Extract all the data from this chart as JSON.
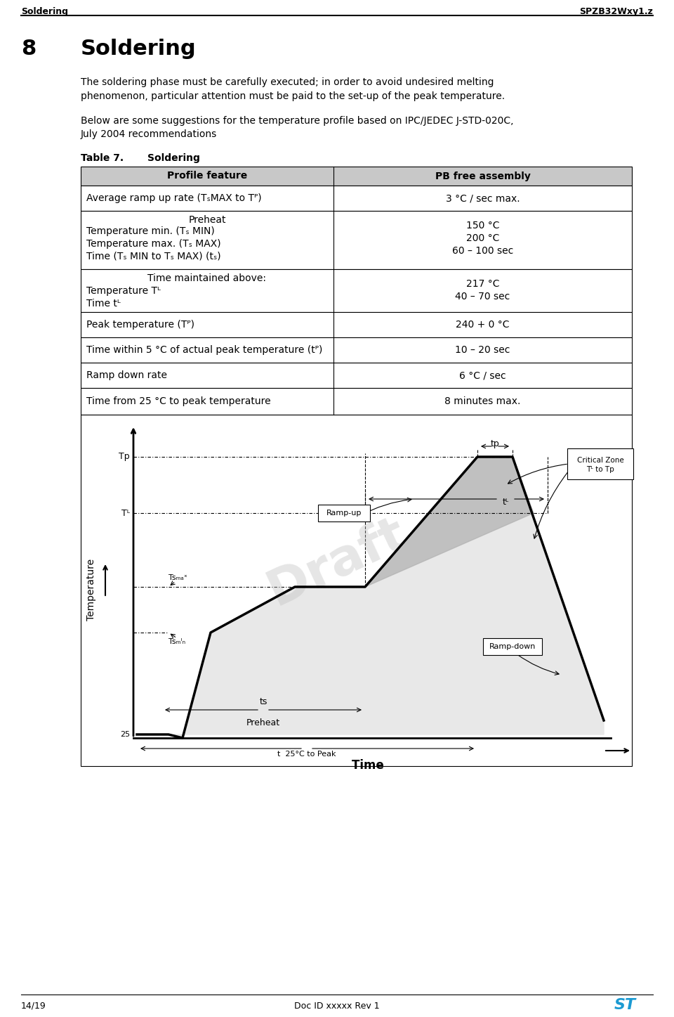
{
  "header_left": "Soldering",
  "header_right": "SPZB32Wxy1.z",
  "section_num": "8",
  "section_title": "Soldering",
  "para1": "The soldering phase must be carefully executed; in order to avoid undesired melting\nphenomenon, particular attention must be paid to the set-up of the peak temperature.",
  "para2": "Below are some suggestions for the temperature profile based on IPC/JEDEC J-STD-020C,\nJuly 2004 recommendations",
  "table_title": "Table 7.  Soldering",
  "col1_header": "Profile feature",
  "col2_header": "PB free assembly",
  "rows": [
    {
      "col1": "Average ramp up rate (Tₛᴹₕ to Tᴾ)",
      "col1_plain": "Average ramp up rate (TSMAX to TP)",
      "col2": "3 °C / sec max.",
      "merged": false,
      "shaded": false
    },
    {
      "col1": "Preheat\nTemperature min. (Tₛ ᴹᴵₙ)\nTemperature max. (Tₛ ᴹₐˣ)\nTime (Tₛ ᴹᴵₙ to Tₛ ᴹₐˣ) (tₛ)",
      "col1_plain": "Preheat\nTemperature min. (TS MIN)\nTemperature max. (TS MAX)\nTime (TS MIN to TS MAX) (tS)",
      "col2": "150 °C\n200 °C\n60 – 100 sec",
      "merged": false,
      "shaded": false
    },
    {
      "col1": "Time maintained above:\nTemperature Tᴸ\nTime tᴸ",
      "col1_plain": "Time maintained above:\nTemperature TL\nTime tL",
      "col2": "217 °C\n40 – 70 sec",
      "merged": false,
      "shaded": false
    },
    {
      "col1": "Peak temperature (Tᴾ)",
      "col1_plain": "Peak temperature (Tp)",
      "col2": "240 + 0 °C",
      "merged": false,
      "shaded": false
    },
    {
      "col1": "Time within 5 °C of actual peak temperature (tᴾ)",
      "col1_plain": "Time within 5 degC of actual peak temperature (tp)",
      "col2": "10 – 20 sec",
      "merged": false,
      "shaded": false
    },
    {
      "col1": "Ramp down rate",
      "col1_plain": "Ramp down rate",
      "col2": "6 °C / sec",
      "merged": false,
      "shaded": false
    },
    {
      "col1": "Time from 25 °C to peak temperature",
      "col1_plain": "Time from 25 degC to peak temperature",
      "col2": "8 minutes max.",
      "merged": false,
      "shaded": false
    }
  ],
  "footer_left": "14/19",
  "footer_center": "Doc ID xxxxx Rev 1",
  "draft_watermark": "Draft",
  "bg_color": "#ffffff",
  "header_line_color": "#000000",
  "table_border_color": "#000000",
  "table_header_bg": "#d0d0d0",
  "st_logo_color": "#1b9ad2"
}
